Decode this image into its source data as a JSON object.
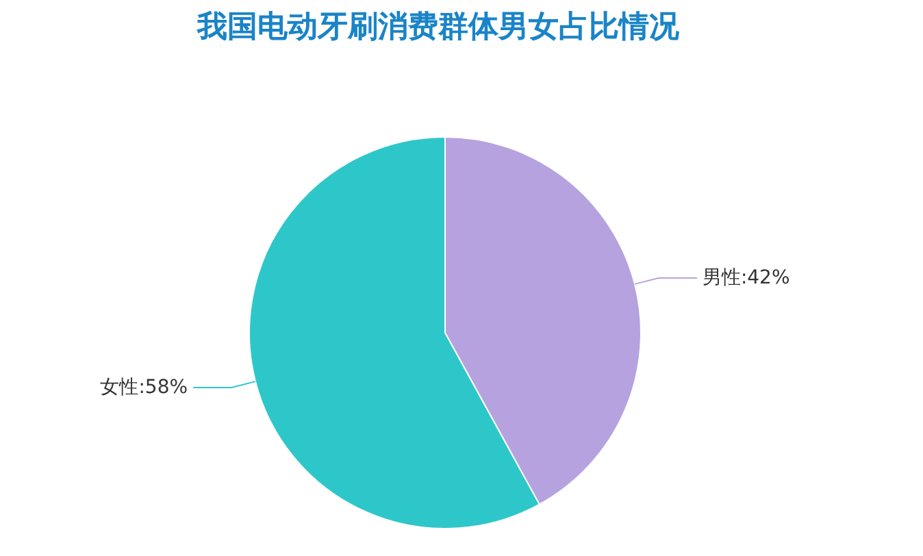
{
  "chart_data": {
    "type": "pie",
    "title": "我国电动牙刷消费群体男女占比情况",
    "categories": [
      "男性",
      "女性"
    ],
    "values": [
      42,
      58
    ],
    "value_labels": [
      "42%",
      "58%"
    ],
    "colors": [
      "#b6a2de",
      "#2ec7c9"
    ]
  }
}
